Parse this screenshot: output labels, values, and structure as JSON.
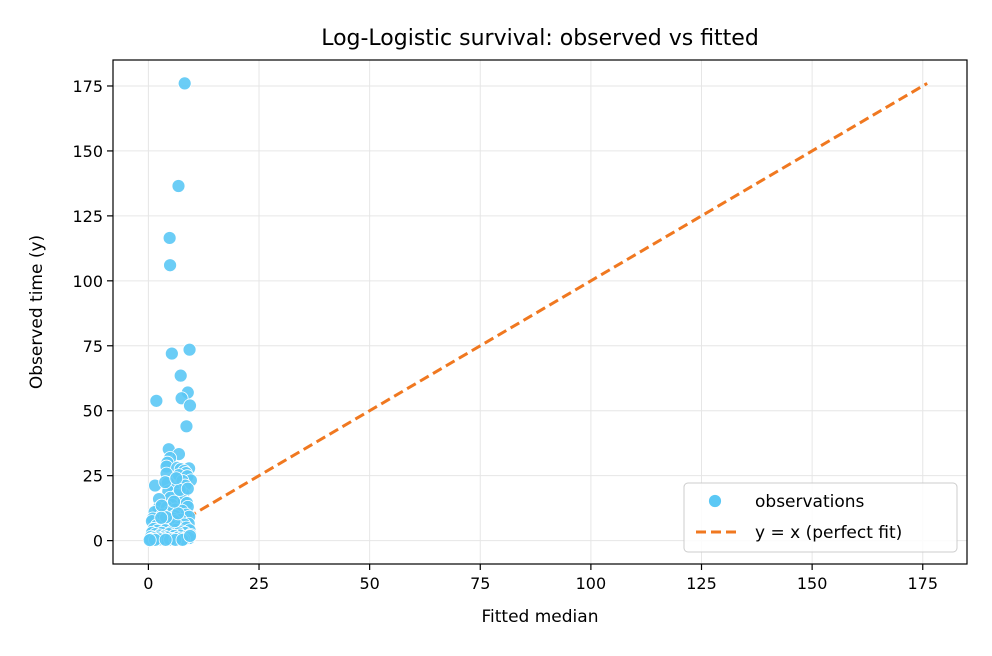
{
  "chart_data": {
    "type": "scatter",
    "title": "Log-Logistic survival: observed vs fitted",
    "xlabel": "Fitted median",
    "ylabel": "Observed time (y)",
    "xlim": [
      -8,
      185
    ],
    "ylim": [
      -9,
      185
    ],
    "xticks": [
      0,
      25,
      50,
      75,
      100,
      125,
      150,
      175
    ],
    "yticks": [
      0,
      25,
      50,
      75,
      100,
      125,
      150,
      175
    ],
    "grid": true,
    "legend_position": "lower-right",
    "colors": {
      "points": "#5bc8f5",
      "points_edge": "#ffffff",
      "reference_line": "#f07820",
      "grid": "#e6e6e6"
    },
    "series": [
      {
        "name": "observations",
        "kind": "scatter",
        "points": [
          [
            8.2,
            176.0
          ],
          [
            6.8,
            136.5
          ],
          [
            4.8,
            116.5
          ],
          [
            4.9,
            106.0
          ],
          [
            5.3,
            72.0
          ],
          [
            9.3,
            73.5
          ],
          [
            7.3,
            63.5
          ],
          [
            8.9,
            57.0
          ],
          [
            7.5,
            54.8
          ],
          [
            1.8,
            53.8
          ],
          [
            9.4,
            52.0
          ],
          [
            8.6,
            44.0
          ],
          [
            4.6,
            35.2
          ],
          [
            6.9,
            33.3
          ],
          [
            4.9,
            31.8
          ],
          [
            4.3,
            30.0
          ],
          [
            4.1,
            28.5
          ],
          [
            6.5,
            28.0
          ],
          [
            7.3,
            27.5
          ],
          [
            9.2,
            27.8
          ],
          [
            8.1,
            26.8
          ],
          [
            8.5,
            26.0
          ],
          [
            6.9,
            25.2
          ],
          [
            8.8,
            24.8
          ],
          [
            4.1,
            25.8
          ],
          [
            9.6,
            23.2
          ],
          [
            7.7,
            23.0
          ],
          [
            4.4,
            22.2
          ],
          [
            8.3,
            21.2
          ],
          [
            1.5,
            21.2
          ],
          [
            5.6,
            20.0
          ],
          [
            4.5,
            19.0
          ],
          [
            7.9,
            18.0
          ],
          [
            6.5,
            17.5
          ],
          [
            5.0,
            16.5
          ],
          [
            2.4,
            16.0
          ],
          [
            8.0,
            15.2
          ],
          [
            8.7,
            14.5
          ],
          [
            5.3,
            13.8
          ],
          [
            2.3,
            12.5
          ],
          [
            8.9,
            13.0
          ],
          [
            4.2,
            12.8
          ],
          [
            6.1,
            12.0
          ],
          [
            7.6,
            11.5
          ],
          [
            1.4,
            11.0
          ],
          [
            4.7,
            11.0
          ],
          [
            3.2,
            10.0
          ],
          [
            8.5,
            10.0
          ],
          [
            6.0,
            9.5
          ],
          [
            9.2,
            9.2
          ],
          [
            1.0,
            8.5
          ],
          [
            5.5,
            8.5
          ],
          [
            7.3,
            8.0
          ],
          [
            2.6,
            7.8
          ],
          [
            0.8,
            7.5
          ],
          [
            4.1,
            7.2
          ],
          [
            6.2,
            6.8
          ],
          [
            9.1,
            6.5
          ],
          [
            8.1,
            6.2
          ],
          [
            3.5,
            6.0
          ],
          [
            1.9,
            5.8
          ],
          [
            5.3,
            5.5
          ],
          [
            7.0,
            5.2
          ],
          [
            2.8,
            5.0
          ],
          [
            8.6,
            5.0
          ],
          [
            4.4,
            4.8
          ],
          [
            1.2,
            4.5
          ],
          [
            6.3,
            4.2
          ],
          [
            3.8,
            4.0
          ],
          [
            9.3,
            4.0
          ],
          [
            2.0,
            3.8
          ],
          [
            7.6,
            3.5
          ],
          [
            5.1,
            3.2
          ],
          [
            0.8,
            3.0
          ],
          [
            3.0,
            3.0
          ],
          [
            8.3,
            3.0
          ],
          [
            6.8,
            2.8
          ],
          [
            4.6,
            2.5
          ],
          [
            1.6,
            2.5
          ],
          [
            9.5,
            2.2
          ],
          [
            2.6,
            2.0
          ],
          [
            7.1,
            2.0
          ],
          [
            5.8,
            1.8
          ],
          [
            3.6,
            1.6
          ],
          [
            0.6,
            1.5
          ],
          [
            8.7,
            1.5
          ],
          [
            4.2,
            1.2
          ],
          [
            2.1,
            1.2
          ],
          [
            6.5,
            1.1
          ],
          [
            9.2,
            1.0
          ],
          [
            1.1,
            0.9
          ],
          [
            3.3,
            0.8
          ],
          [
            7.4,
            0.8
          ],
          [
            5.4,
            0.6
          ],
          [
            0.5,
            0.5
          ],
          [
            2.6,
            0.5
          ],
          [
            4.9,
            0.4
          ],
          [
            8.1,
            0.5
          ],
          [
            6.1,
            0.3
          ],
          [
            1.5,
            0.3
          ],
          [
            3.9,
            0.3
          ],
          [
            7.7,
            0.3
          ],
          [
            0.3,
            0.2
          ],
          [
            9.4,
            1.8
          ],
          [
            5.9,
            7.5
          ],
          [
            4.0,
            9.0
          ],
          [
            6.7,
            10.5
          ],
          [
            3.0,
            13.5
          ],
          [
            5.8,
            15.0
          ],
          [
            7.1,
            19.5
          ],
          [
            3.8,
            22.5
          ],
          [
            6.3,
            24.0
          ],
          [
            8.9,
            20.0
          ],
          [
            2.9,
            8.8
          ]
        ]
      },
      {
        "name": "y = x (perfect fit)",
        "kind": "line",
        "style": "dashed",
        "x": [
          0,
          176
        ],
        "y": [
          0,
          176
        ]
      }
    ]
  }
}
